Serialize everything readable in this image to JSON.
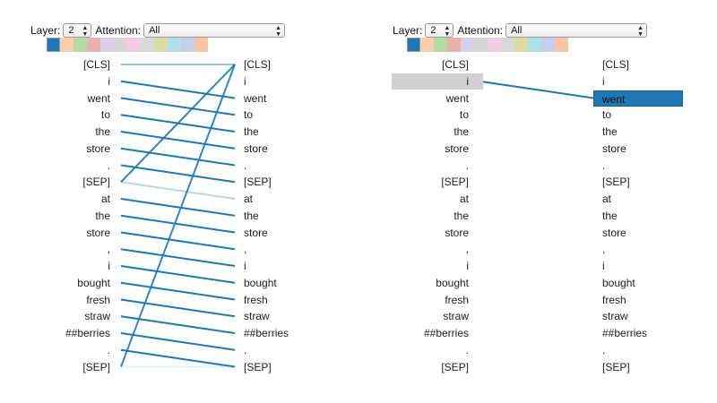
{
  "panels": [
    {
      "layer_label": "Layer:",
      "layer_value": "2",
      "attention_label": "Attention:",
      "attention_value": "All",
      "active_swatch": 0,
      "highlight_left": null,
      "highlight_right": null
    },
    {
      "layer_label": "Layer:",
      "layer_value": "2",
      "attention_label": "Attention:",
      "attention_value": "All",
      "active_swatch": 0,
      "highlight_left": 1,
      "highlight_right": 2
    }
  ],
  "head_colors": [
    "#1f77b4",
    "#f7cfae",
    "#b7d9a8",
    "#e8b1b2",
    "#d8d0e8",
    "#d6d6d6",
    "#f3cce3",
    "#d9d9d9",
    "#dcdca6",
    "#b3e0e6",
    "#c2d0e8",
    "#f6c6a6"
  ],
  "tokens": [
    "[CLS]",
    "i",
    "went",
    "to",
    "the",
    "store",
    ".",
    "[SEP]",
    "at",
    "the",
    "store",
    ",",
    "i",
    "bought",
    "fresh",
    "straw",
    "##berries",
    ".",
    "[SEP]"
  ],
  "attention_links": {
    "panel_1": [
      {
        "from": 0,
        "to": 0,
        "weight": 0.45
      },
      {
        "from": 1,
        "to": 2,
        "weight": 1
      },
      {
        "from": 2,
        "to": 3,
        "weight": 1
      },
      {
        "from": 3,
        "to": 4,
        "weight": 1
      },
      {
        "from": 4,
        "to": 5,
        "weight": 1
      },
      {
        "from": 5,
        "to": 6,
        "weight": 1
      },
      {
        "from": 6,
        "to": 7,
        "weight": 1
      },
      {
        "from": 7,
        "to": 0,
        "weight": 0.9
      },
      {
        "from": 7,
        "to": 8,
        "weight": 0.3
      },
      {
        "from": 8,
        "to": 9,
        "weight": 1
      },
      {
        "from": 9,
        "to": 10,
        "weight": 1
      },
      {
        "from": 10,
        "to": 11,
        "weight": 1
      },
      {
        "from": 11,
        "to": 12,
        "weight": 1
      },
      {
        "from": 12,
        "to": 13,
        "weight": 1
      },
      {
        "from": 13,
        "to": 14,
        "weight": 1
      },
      {
        "from": 14,
        "to": 15,
        "weight": 1
      },
      {
        "from": 15,
        "to": 16,
        "weight": 1
      },
      {
        "from": 16,
        "to": 17,
        "weight": 1
      },
      {
        "from": 17,
        "to": 18,
        "weight": 1
      },
      {
        "from": 18,
        "to": 0,
        "weight": 0.9
      },
      {
        "from": 18,
        "to": 18,
        "weight": 0.12
      }
    ],
    "panel_2": [
      {
        "from": 1,
        "to": 2,
        "weight": 1
      }
    ]
  }
}
